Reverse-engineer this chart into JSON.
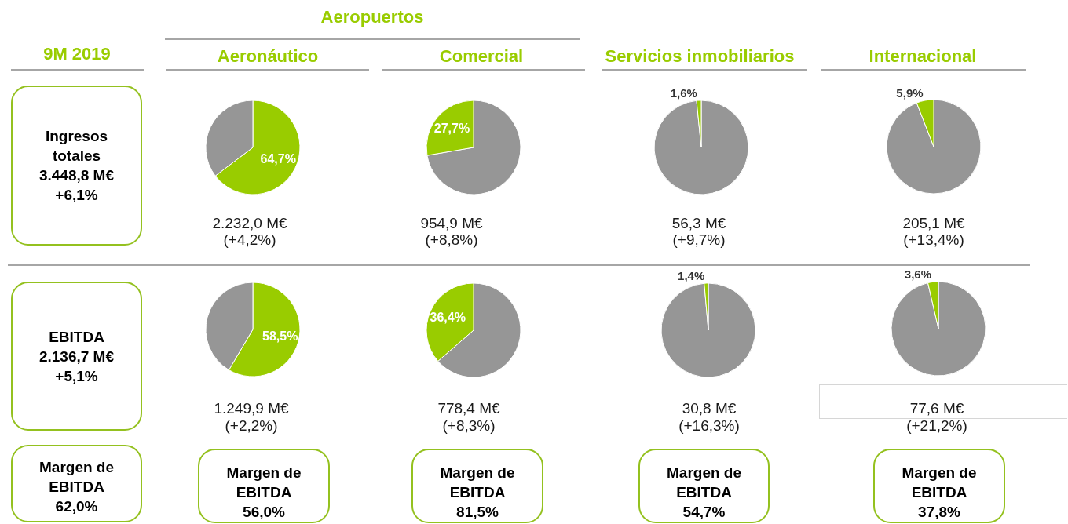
{
  "chart_data": [
    {
      "type": "other",
      "title": "Aeropuertos"
    },
    {
      "type": "other",
      "title": "9M 2019",
      "annotations": [
        "Ingresos totales",
        "3.448,8 M€",
        "+6,1%"
      ]
    },
    {
      "type": "pie",
      "title": "Aeronáutico",
      "categories": [
        null,
        null
      ],
      "values": [
        64.7,
        35.3
      ],
      "colors": [
        "#99cc00",
        "#969696"
      ],
      "value_labels": [
        "64,7%",
        null
      ],
      "annotations": [
        "2.232,0 M€",
        "(+4,2%)"
      ]
    },
    {
      "type": "pie",
      "title": "Comercial",
      "categories": [
        null,
        null
      ],
      "values": [
        72.3,
        27.7
      ],
      "colors": [
        "#969696",
        "#99cc00"
      ],
      "value_labels": [
        null,
        "27,7%"
      ],
      "annotations": [
        "954,9 M€",
        "(+8,8%)"
      ]
    },
    {
      "type": "pie",
      "title": "Servicios inmobiliarios",
      "categories": [
        null,
        null
      ],
      "values": [
        98.4,
        1.6
      ],
      "colors": [
        "#969696",
        "#99cc00"
      ],
      "value_labels": [
        null,
        "1,6%"
      ],
      "annotations": [
        "56,3 M€",
        "(+9,7%)"
      ]
    },
    {
      "type": "pie",
      "title": "Internacional",
      "categories": [
        null,
        null
      ],
      "values": [
        94.1,
        5.9
      ],
      "colors": [
        "#969696",
        "#99cc00"
      ],
      "value_labels": [
        null,
        "5,9%"
      ],
      "annotations": [
        "205,1 M€",
        "(+13,4%)"
      ]
    },
    {
      "type": "other",
      "annotations": [
        "EBITDA",
        "2.136,7 M€",
        "+5,1%"
      ]
    },
    {
      "type": "pie",
      "categories": [
        null,
        null
      ],
      "values": [
        58.5,
        41.5
      ],
      "colors": [
        "#99cc00",
        "#969696"
      ],
      "value_labels": [
        "58,5%",
        null
      ],
      "annotations": [
        "1.249,9 M€",
        "(+2,2%)"
      ]
    },
    {
      "type": "pie",
      "categories": [
        null,
        null
      ],
      "values": [
        63.6,
        36.4
      ],
      "colors": [
        "#969696",
        "#99cc00"
      ],
      "value_labels": [
        null,
        "36,4%"
      ],
      "annotations": [
        "778,4 M€",
        "(+8,3%)"
      ]
    },
    {
      "type": "pie",
      "categories": [
        null,
        null
      ],
      "values": [
        98.6,
        1.4
      ],
      "colors": [
        "#969696",
        "#99cc00"
      ],
      "value_labels": [
        null,
        "1,4%"
      ],
      "annotations": [
        "30,8 M€",
        "(+16,3%)"
      ]
    },
    {
      "type": "pie",
      "categories": [
        null,
        null
      ],
      "values": [
        96.4,
        3.6
      ],
      "colors": [
        "#969696",
        "#99cc00"
      ],
      "value_labels": [
        null,
        "3,6%"
      ],
      "annotations": [
        "77,6 M€",
        "(+21,2%)"
      ]
    },
    {
      "type": "other",
      "annotations": [
        "Margen de EBITDA",
        "62,0%"
      ]
    },
    {
      "type": "other",
      "annotations": [
        "Margen de EBITDA",
        "56,0%"
      ]
    },
    {
      "type": "other",
      "annotations": [
        "Margen de EBITDA",
        "81,5%"
      ]
    },
    {
      "type": "other",
      "annotations": [
        "Margen de EBITDA",
        "54,7%"
      ]
    },
    {
      "type": "other",
      "annotations": [
        "Margen de EBITDA",
        "37,8%"
      ]
    }
  ]
}
